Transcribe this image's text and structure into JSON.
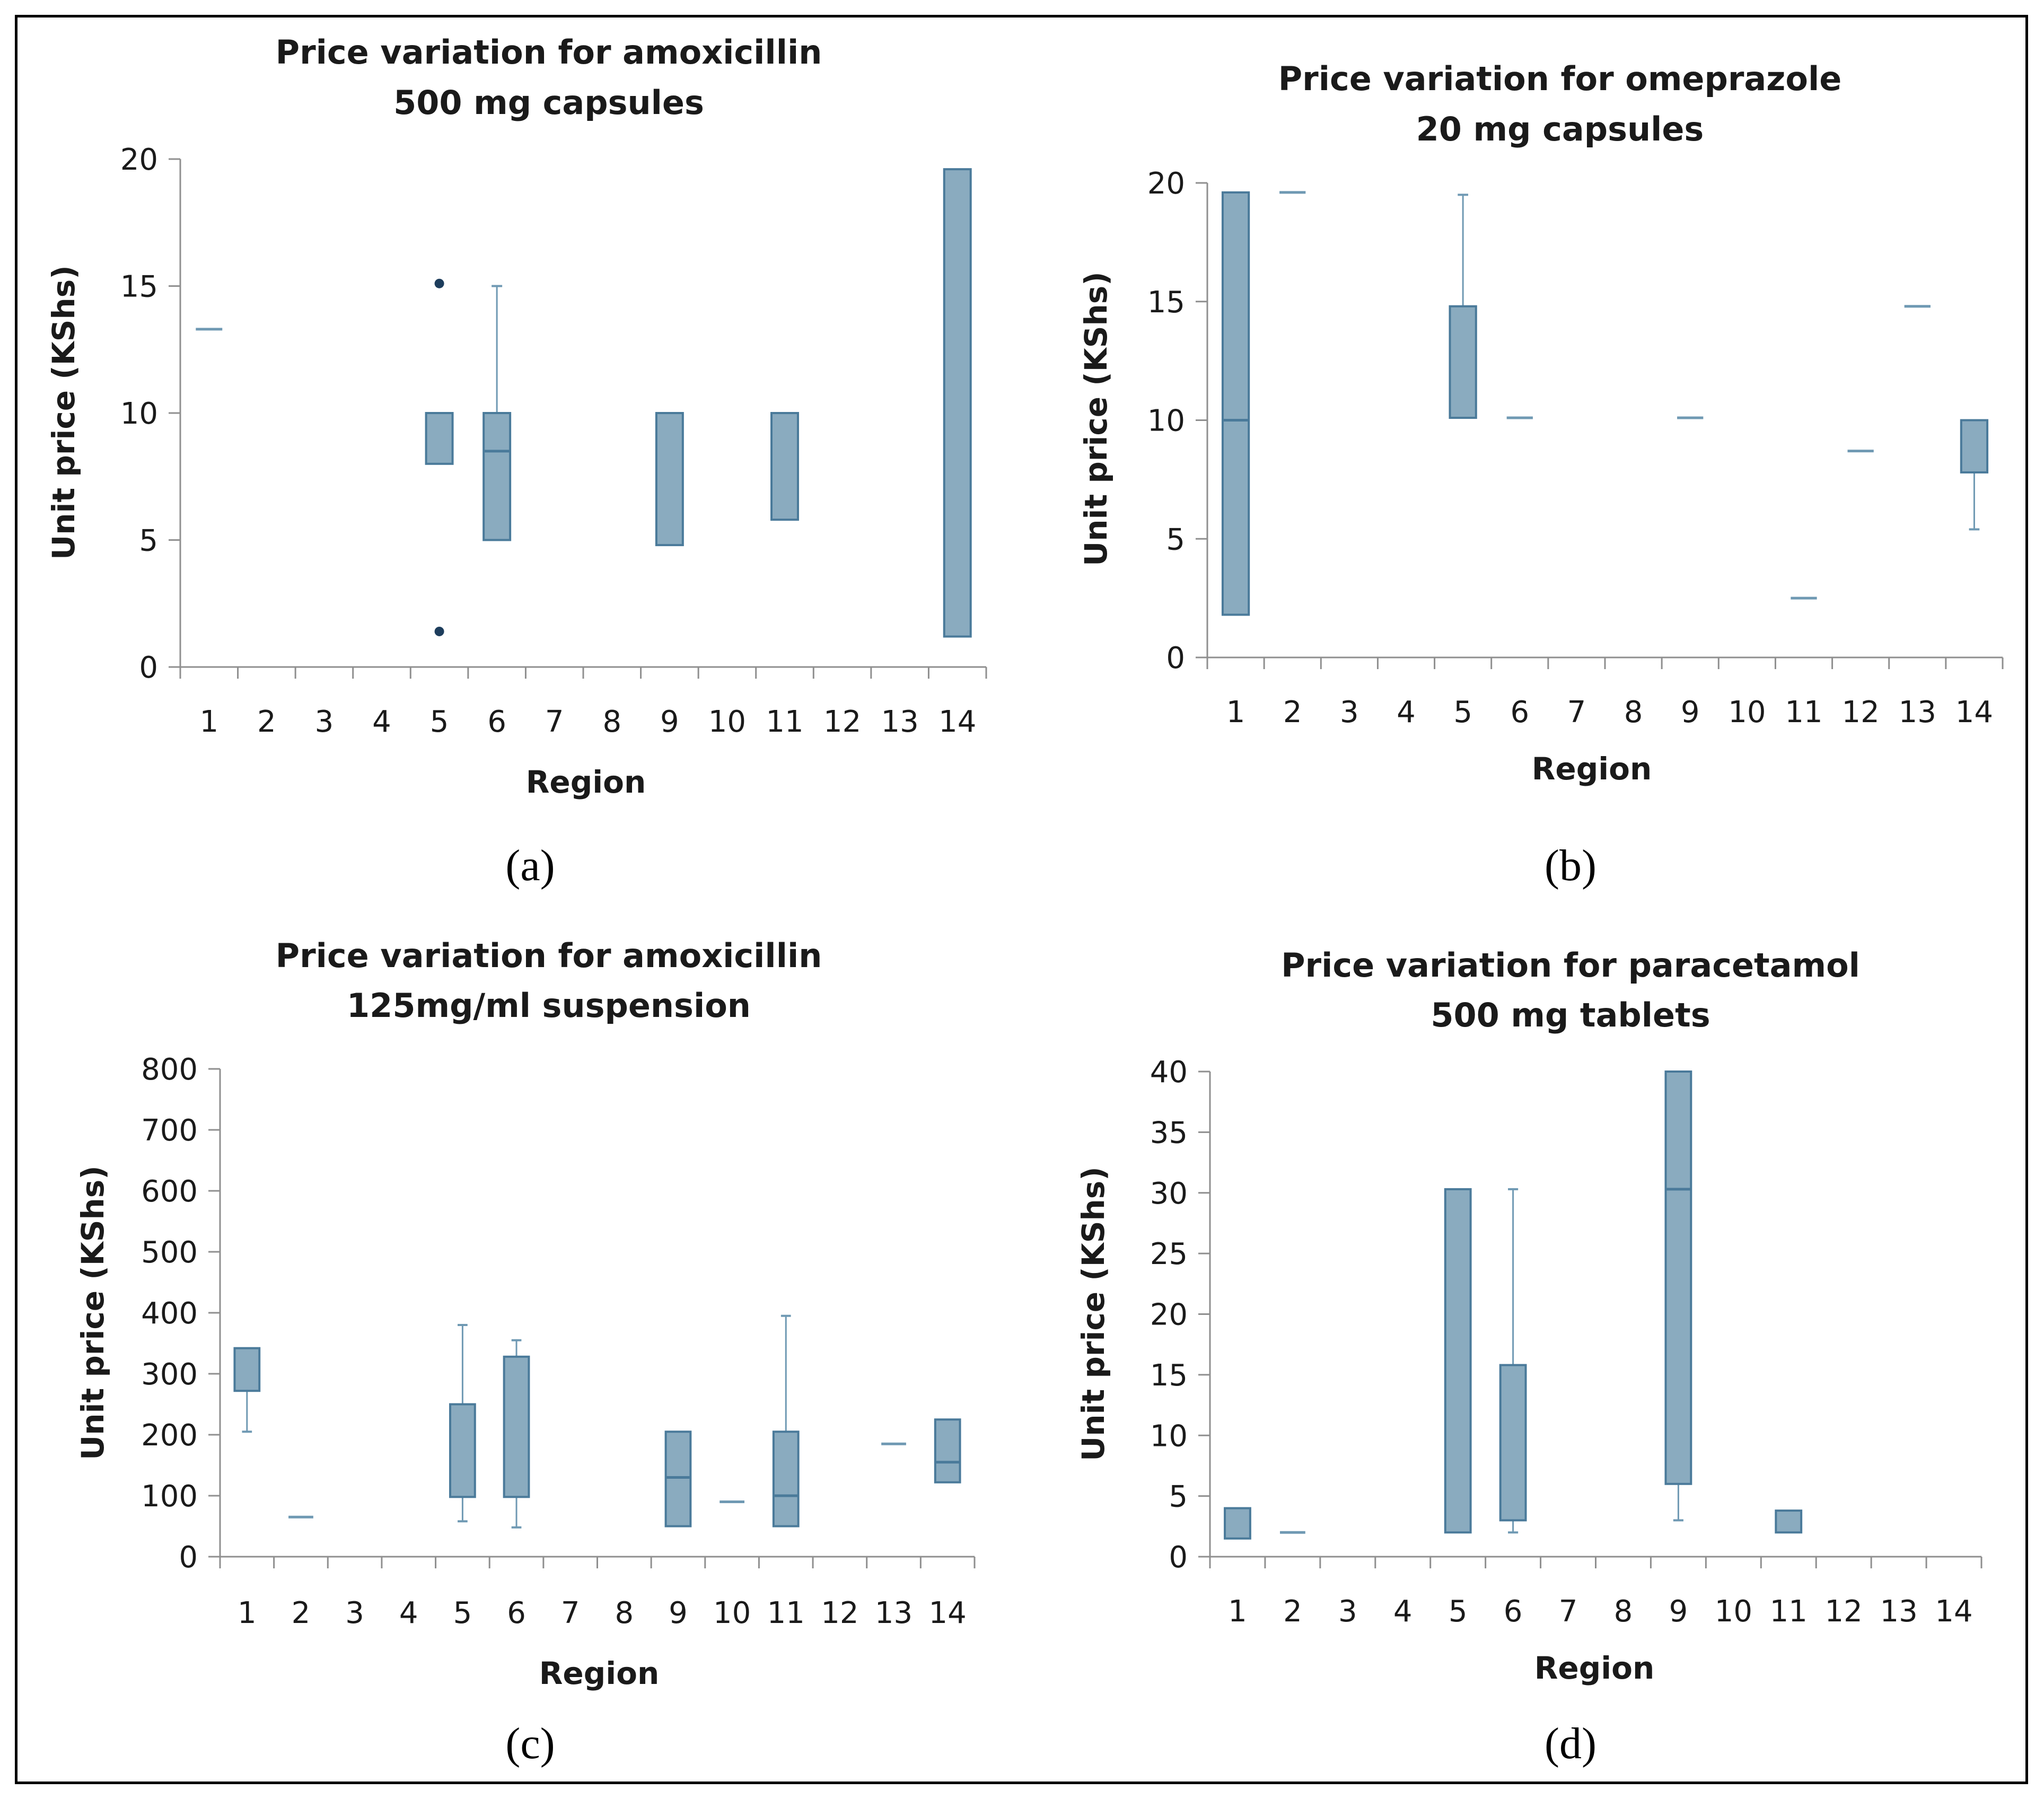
{
  "chart_data": [
    {
      "type": "box",
      "caption": "(a)",
      "title": [
        "Price variation for amoxicillin",
        "500 mg capsules"
      ],
      "xlabel": "Region",
      "ylabel": "Unit price (KShs)",
      "categories": [
        "1",
        "2",
        "3",
        "4",
        "5",
        "6",
        "7",
        "8",
        "9",
        "10",
        "11",
        "12",
        "13",
        "14"
      ],
      "ylim": [
        0,
        20
      ],
      "yticks": [
        0,
        5,
        10,
        15,
        20
      ],
      "colors": {
        "box_fill": "#8aabbf",
        "box_stroke": "#4a7a9a",
        "whisker": "#6f99b3",
        "outlier": "#1d3d5c",
        "axis": "#8f8f8f"
      },
      "boxes": [
        {
          "category": "1",
          "q1": 13.3,
          "q3": 13.3
        },
        {
          "category": "5",
          "q1": 8.0,
          "q3": 10.0
        },
        {
          "category": "6",
          "q1": 5.0,
          "median": 8.5,
          "q3": 10.0,
          "max": 15.0
        },
        {
          "category": "9",
          "q1": 4.8,
          "q3": 10.0
        },
        {
          "category": "11",
          "q1": 5.8,
          "q3": 10.0
        },
        {
          "category": "14",
          "q1": 1.2,
          "q3": 19.6
        }
      ],
      "outliers": [
        {
          "category": "5",
          "value": 15.1
        },
        {
          "category": "5",
          "value": 1.4
        }
      ]
    },
    {
      "type": "box",
      "caption": "(b)",
      "title": [
        "Price variation for omeprazole",
        "20 mg capsules"
      ],
      "xlabel": "Region",
      "ylabel": "Unit price (KShs)",
      "categories": [
        "1",
        "2",
        "3",
        "4",
        "5",
        "6",
        "7",
        "8",
        "9",
        "10",
        "11",
        "12",
        "13",
        "14"
      ],
      "ylim": [
        0,
        20
      ],
      "yticks": [
        0,
        5,
        10,
        15,
        20
      ],
      "colors": {
        "box_fill": "#8aabbf",
        "box_stroke": "#4a7a9a",
        "whisker": "#6f99b3",
        "outlier": "#1d3d5c",
        "axis": "#8f8f8f"
      },
      "boxes": [
        {
          "category": "1",
          "q1": 1.8,
          "median": 10.0,
          "q3": 19.6
        },
        {
          "category": "2",
          "q1": 19.6,
          "q3": 19.6
        },
        {
          "category": "5",
          "q1": 10.1,
          "q3": 14.8,
          "max": 19.5
        },
        {
          "category": "6",
          "q1": 10.1,
          "q3": 10.1
        },
        {
          "category": "9",
          "q1": 10.1,
          "q3": 10.1
        },
        {
          "category": "11",
          "q1": 2.5,
          "q3": 2.5
        },
        {
          "category": "12",
          "q1": 8.7,
          "q3": 8.7
        },
        {
          "category": "13",
          "q1": 14.8,
          "q3": 14.8
        },
        {
          "category": "14",
          "q1": 7.8,
          "q3": 10.0,
          "min": 5.4
        }
      ],
      "outliers": []
    },
    {
      "type": "box",
      "caption": "(c)",
      "title": [
        "Price variation for amoxicillin",
        "125mg/ml suspension"
      ],
      "xlabel": "Region",
      "ylabel": "Unit price (KShs)",
      "categories": [
        "1",
        "2",
        "3",
        "4",
        "5",
        "6",
        "7",
        "8",
        "9",
        "10",
        "11",
        "12",
        "13",
        "14"
      ],
      "ylim": [
        0,
        800
      ],
      "yticks": [
        0,
        100,
        200,
        300,
        400,
        500,
        600,
        700,
        800
      ],
      "colors": {
        "box_fill": "#8aabbf",
        "box_stroke": "#4a7a9a",
        "whisker": "#6f99b3",
        "outlier": "#1d3d5c",
        "axis": "#8f8f8f"
      },
      "boxes": [
        {
          "category": "1",
          "min": 205,
          "q1": 272,
          "q3": 342
        },
        {
          "category": "2",
          "q1": 65,
          "q3": 65
        },
        {
          "category": "5",
          "min": 58,
          "q1": 98,
          "q3": 250,
          "max": 380
        },
        {
          "category": "6",
          "min": 48,
          "q1": 98,
          "q3": 328,
          "max": 355
        },
        {
          "category": "9",
          "q1": 50,
          "median": 130,
          "q3": 205
        },
        {
          "category": "10",
          "q1": 90,
          "q3": 90
        },
        {
          "category": "11",
          "q1": 50,
          "median": 100,
          "q3": 205,
          "max": 395
        },
        {
          "category": "13",
          "q1": 185,
          "q3": 185
        },
        {
          "category": "14",
          "q1": 122,
          "median": 155,
          "q3": 225
        }
      ],
      "outliers": []
    },
    {
      "type": "box",
      "caption": "(d)",
      "title": [
        "Price variation for paracetamol",
        "500 mg tablets"
      ],
      "xlabel": "Region",
      "ylabel": "Unit price (KShs)",
      "categories": [
        "1",
        "2",
        "3",
        "4",
        "5",
        "6",
        "7",
        "8",
        "9",
        "10",
        "11",
        "12",
        "13",
        "14"
      ],
      "ylim": [
        0,
        40
      ],
      "yticks": [
        0,
        5,
        10,
        15,
        20,
        25,
        30,
        35,
        40
      ],
      "colors": {
        "box_fill": "#8aabbf",
        "box_stroke": "#4a7a9a",
        "whisker": "#6f99b3",
        "outlier": "#1d3d5c",
        "axis": "#8f8f8f"
      },
      "boxes": [
        {
          "category": "1",
          "q1": 1.5,
          "q3": 4.0
        },
        {
          "category": "2",
          "q1": 2.0,
          "q3": 2.0
        },
        {
          "category": "5",
          "q1": 2.0,
          "q3": 30.3
        },
        {
          "category": "6",
          "min": 2.0,
          "q1": 3.0,
          "q3": 15.8,
          "max": 30.3
        },
        {
          "category": "9",
          "min": 3.0,
          "q1": 6.0,
          "median": 30.3,
          "q3": 40.0
        },
        {
          "category": "11",
          "q1": 2.0,
          "q3": 3.8
        }
      ],
      "outliers": []
    }
  ]
}
